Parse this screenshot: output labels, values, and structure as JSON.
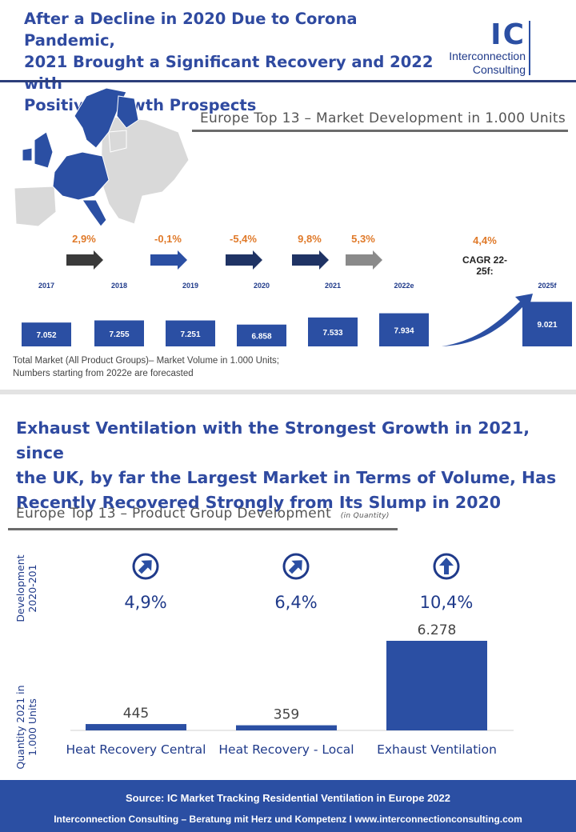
{
  "header": {
    "title_lines": [
      "After a Decline in 2020 Due to Corona Pandemic,",
      "2021 Brought a Significant Recovery and 2022 with",
      "Positive Growth Prospects"
    ],
    "logo_mark": "IC",
    "logo_line1": "Interconnection",
    "logo_line2": "Consulting"
  },
  "section1": {
    "subtitle": "Europe Top 13 – Market Development in 1.000 Units",
    "cagr_label": "CAGR 22-25f:",
    "note_lines": [
      "Total Market  (All Product Groups)– Market Volume in 1.000 Units;",
      "Numbers starting from 2022e are forecasted"
    ]
  },
  "section2": {
    "title_lines": [
      "Exhaust Ventilation with the Strongest Growth in 2021, since",
      "the UK, by far the Largest Market in Terms of Volume, Has",
      "Recently Recovered Strongly from Its Slump in 2020"
    ],
    "subtitle": "Europe Top 13 – Product Group Development",
    "subtitle_note": "(in Quantity)",
    "axis_dev_lines": [
      "Development",
      "2020-201"
    ],
    "axis_qty_lines": [
      "Quantity 2021 in",
      "1.000 Units"
    ]
  },
  "footer": {
    "source": "Source: IC Market Tracking Residential Ventilation in Europe 2022",
    "tagline": "Interconnection Consulting – Beratung mit Herz und Kompetenz  I  www.interconnectionconsulting.com"
  },
  "colors": {
    "accent": "#2b4fa3",
    "growth": "#e07a2a",
    "navy": "#1f3a8a"
  },
  "chart_data": [
    {
      "type": "bar",
      "categories": [
        "2017",
        "2018",
        "2019",
        "2020",
        "2021",
        "2022e",
        "2025f"
      ],
      "values": [
        7.052,
        7.255,
        7.251,
        6.858,
        7.533,
        7.934,
        9.021
      ],
      "value_labels": [
        "7.052",
        "7.255",
        "7.251",
        "6.858",
        "7.533",
        "7.934",
        "9.021"
      ],
      "growth_labels": [
        "2,9%",
        "-0,1%",
        "-5,4%",
        "9,8%",
        "5,3%",
        "4,4%"
      ],
      "ylim": [
        6.0,
        9.5
      ]
    },
    {
      "type": "bar",
      "categories": [
        "Heat Recovery Central",
        "Heat Recovery - Local",
        "Exhaust Ventilation"
      ],
      "values": [
        445,
        359,
        6278
      ],
      "value_labels": [
        "445",
        "359",
        "6.278"
      ],
      "growth_labels": [
        "4,9%",
        "6,4%",
        "10,4%"
      ],
      "growth_icons": [
        "arrow-up-right-icon",
        "arrow-up-right-icon",
        "arrow-up-icon"
      ],
      "ylim": [
        0,
        6278
      ]
    }
  ]
}
